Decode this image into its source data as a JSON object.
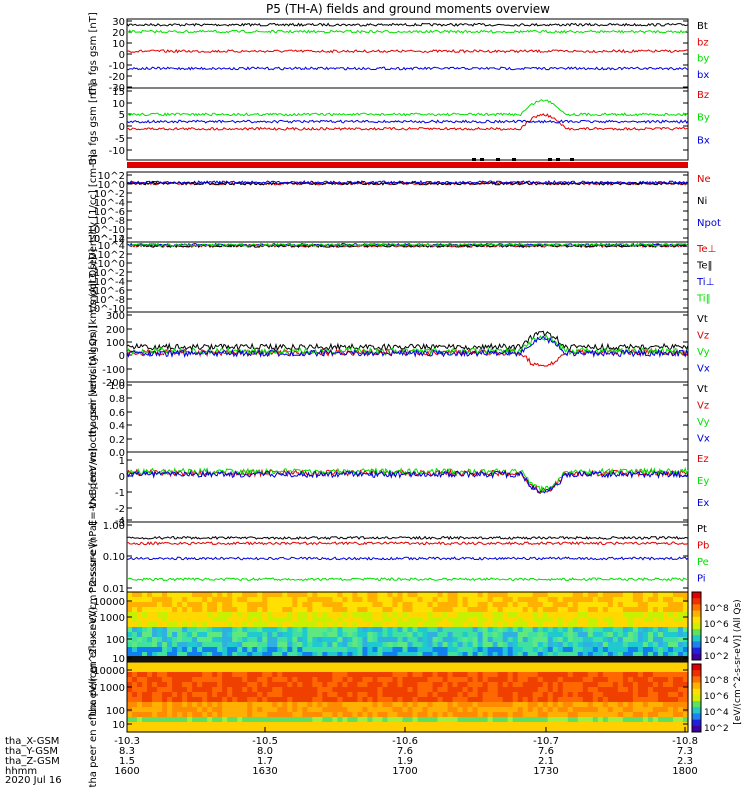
{
  "title": "P5 (TH-A) fields and ground moments overview",
  "date_label": "2020 Jul 16",
  "colors": {
    "black": "#000000",
    "red": "#e00000",
    "green": "#00e000",
    "blue": "#0000dd"
  },
  "x_axis": {
    "label_rows": [
      {
        "label": "tha_X-GSM",
        "values": [
          "-10.3",
          "-10.5",
          "-10.6",
          "-10.7",
          "-10.8"
        ]
      },
      {
        "label": "tha_Y-GSM",
        "values": [
          "8.3",
          "8.0",
          "7.6",
          "7.6",
          "7.3"
        ]
      },
      {
        "label": "tha_Z-GSM",
        "values": [
          "1.5",
          "1.7",
          "1.9",
          "2.1",
          "2.3"
        ]
      },
      {
        "label": "hhmm",
        "values": [
          "1600",
          "1630",
          "1700",
          "1730",
          "1800"
        ]
      }
    ]
  },
  "chart_data": [
    {
      "type": "line",
      "ylabel": "tha fgs gsm [nT]",
      "ylim": [
        -30,
        30
      ],
      "ticks": [
        "30",
        "20",
        "10",
        "0",
        "-10",
        "-20",
        "-30"
      ],
      "series": [
        {
          "name": "Bt",
          "color": "#000000",
          "level": 25
        },
        {
          "name": "bz",
          "color": "#e00000",
          "level": 2
        },
        {
          "name": "by",
          "color": "#00e000",
          "level": 19
        },
        {
          "name": "bx",
          "color": "#0000dd",
          "level": -13
        }
      ]
    },
    {
      "type": "line",
      "ylabel": "tha fgs gsm [nT]",
      "ylim": [
        -15,
        15
      ],
      "ticks": [
        "15",
        "10",
        "5",
        "0",
        "-5",
        "-10"
      ],
      "series": [
        {
          "name": "Bz",
          "color": "#e00000",
          "level": -2
        },
        {
          "name": "By",
          "color": "#00e000",
          "level": 4
        },
        {
          "name": "Bx",
          "color": "#0000dd",
          "level": 1
        }
      ]
    },
    {
      "type": "line",
      "ylabel": "Density [1/cc] [cm-3]",
      "scale": "log",
      "ticks": [
        "10^2",
        "10^0",
        "10^-2",
        "10^-4",
        "10^-6",
        "10^-8",
        "10^-10",
        "10^-12",
        "10^-14"
      ],
      "series": [
        {
          "name": "Ne",
          "color": "#e00000",
          "level": 0.5
        },
        {
          "name": "Ni",
          "color": "#000000",
          "level": 0.5
        },
        {
          "name": "Npot",
          "color": "#0000dd",
          "level": 1
        }
      ]
    },
    {
      "type": "line",
      "ylabel": "moqt3 [eV]",
      "scale": "log",
      "ticks": [
        "10^4",
        "10^2",
        "10^0",
        "10^-2",
        "10^-4",
        "10^-6",
        "10^-8",
        "10^-10"
      ],
      "series": [
        {
          "name": "Te⊥",
          "color": "#e00000",
          "level": 3000
        },
        {
          "name": "Te‖",
          "color": "#000000",
          "level": 3000
        },
        {
          "name": "Ti⊥",
          "color": "#0000dd",
          "level": 5000
        },
        {
          "name": "Ti‖",
          "color": "#00e000",
          "level": 5000
        }
      ]
    },
    {
      "type": "line",
      "ylabel": "tha peir velocity gsm [km/s (All Qs)]",
      "ylim": [
        -200,
        300
      ],
      "ticks": [
        "300",
        "200",
        "100",
        "0",
        "-100",
        "-200"
      ],
      "series": [
        {
          "name": "Vt",
          "color": "#000000",
          "level": 50
        },
        {
          "name": "Vz",
          "color": "#e00000",
          "level": 10
        },
        {
          "name": "Vy",
          "color": "#00e000",
          "level": 20
        },
        {
          "name": "Vx",
          "color": "#0000dd",
          "level": 5
        }
      ]
    },
    {
      "type": "line",
      "ylabel": "tha peer velocity gsm [km/s (All Qs)]",
      "ylim": [
        0,
        1
      ],
      "ticks": [
        "1.0",
        "0.8",
        "0.6",
        "0.4",
        "0.2",
        "0.0"
      ],
      "series": [
        {
          "name": "Vt",
          "color": "#000000"
        },
        {
          "name": "Vz",
          "color": "#e00000"
        },
        {
          "name": "Vy",
          "color": "#00e000"
        },
        {
          "name": "Vx",
          "color": "#0000dd"
        }
      ]
    },
    {
      "type": "line",
      "ylabel": "E=-VxB [mV/m]",
      "ylim": [
        -4,
        1
      ],
      "ticks": [
        "1",
        "0",
        "-1",
        "-2",
        "-3",
        "-4"
      ],
      "series": [
        {
          "name": "Ez",
          "color": "#e00000",
          "level": -0.5
        },
        {
          "name": "Ey",
          "color": "#00e000",
          "level": -0.4
        },
        {
          "name": "Ex",
          "color": "#0000dd",
          "level": -0.6
        }
      ]
    },
    {
      "type": "line",
      "ylabel": "Pressure [nPa]",
      "scale": "log",
      "ticks": [
        "1.00",
        "0.10",
        "0.01"
      ],
      "series": [
        {
          "name": "Pt",
          "color": "#000000",
          "level": 0.4
        },
        {
          "name": "Pb",
          "color": "#e00000",
          "level": 0.27
        },
        {
          "name": "Pe",
          "color": "#00e000",
          "level": 0.02
        },
        {
          "name": "Pi",
          "color": "#0000dd",
          "level": 0.09
        }
      ]
    },
    {
      "type": "heatmap",
      "ylabel": "tha peir en eflux eV/(cm^2-s-sr-eV)",
      "scale": "log",
      "ticks": [
        "10000",
        "1000",
        "100",
        "10"
      ]
    },
    {
      "type": "heatmap",
      "ylabel": "tha peer en eflux eV/(cm^2-s-sr-eV)",
      "scale": "log",
      "ticks": [
        "10000",
        "1000",
        "100",
        "10"
      ]
    }
  ],
  "colorbar_upper": {
    "ticks": [
      "10^8",
      "10^6",
      "10^4",
      "10^2"
    ],
    "label": "[eV/(cm^2-s-sr-eV)] (All Qs)"
  },
  "colorbar_lower": {
    "ticks": [
      "10^8",
      "10^6",
      "10^4",
      "10^2"
    ],
    "label": "[eV/(cm^2-s-sr-eV)]"
  }
}
